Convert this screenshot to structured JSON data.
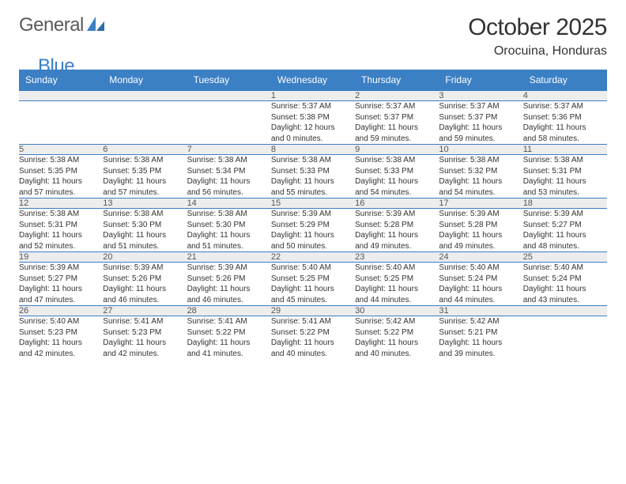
{
  "logo": {
    "general": "General",
    "blue": "Blue"
  },
  "header": {
    "title": "October 2025",
    "location": "Orocuina, Honduras"
  },
  "dayNames": [
    "Sunday",
    "Monday",
    "Tuesday",
    "Wednesday",
    "Thursday",
    "Friday",
    "Saturday"
  ],
  "colors": {
    "headerBg": "#3b7fc4",
    "dayRowBg": "#ededed",
    "text": "#333333"
  },
  "weeks": [
    [
      null,
      null,
      null,
      {
        "n": "1",
        "sr": "Sunrise: 5:37 AM",
        "ss": "Sunset: 5:38 PM",
        "d1": "Daylight: 12 hours",
        "d2": "and 0 minutes."
      },
      {
        "n": "2",
        "sr": "Sunrise: 5:37 AM",
        "ss": "Sunset: 5:37 PM",
        "d1": "Daylight: 11 hours",
        "d2": "and 59 minutes."
      },
      {
        "n": "3",
        "sr": "Sunrise: 5:37 AM",
        "ss": "Sunset: 5:37 PM",
        "d1": "Daylight: 11 hours",
        "d2": "and 59 minutes."
      },
      {
        "n": "4",
        "sr": "Sunrise: 5:37 AM",
        "ss": "Sunset: 5:36 PM",
        "d1": "Daylight: 11 hours",
        "d2": "and 58 minutes."
      }
    ],
    [
      {
        "n": "5",
        "sr": "Sunrise: 5:38 AM",
        "ss": "Sunset: 5:35 PM",
        "d1": "Daylight: 11 hours",
        "d2": "and 57 minutes."
      },
      {
        "n": "6",
        "sr": "Sunrise: 5:38 AM",
        "ss": "Sunset: 5:35 PM",
        "d1": "Daylight: 11 hours",
        "d2": "and 57 minutes."
      },
      {
        "n": "7",
        "sr": "Sunrise: 5:38 AM",
        "ss": "Sunset: 5:34 PM",
        "d1": "Daylight: 11 hours",
        "d2": "and 56 minutes."
      },
      {
        "n": "8",
        "sr": "Sunrise: 5:38 AM",
        "ss": "Sunset: 5:33 PM",
        "d1": "Daylight: 11 hours",
        "d2": "and 55 minutes."
      },
      {
        "n": "9",
        "sr": "Sunrise: 5:38 AM",
        "ss": "Sunset: 5:33 PM",
        "d1": "Daylight: 11 hours",
        "d2": "and 54 minutes."
      },
      {
        "n": "10",
        "sr": "Sunrise: 5:38 AM",
        "ss": "Sunset: 5:32 PM",
        "d1": "Daylight: 11 hours",
        "d2": "and 54 minutes."
      },
      {
        "n": "11",
        "sr": "Sunrise: 5:38 AM",
        "ss": "Sunset: 5:31 PM",
        "d1": "Daylight: 11 hours",
        "d2": "and 53 minutes."
      }
    ],
    [
      {
        "n": "12",
        "sr": "Sunrise: 5:38 AM",
        "ss": "Sunset: 5:31 PM",
        "d1": "Daylight: 11 hours",
        "d2": "and 52 minutes."
      },
      {
        "n": "13",
        "sr": "Sunrise: 5:38 AM",
        "ss": "Sunset: 5:30 PM",
        "d1": "Daylight: 11 hours",
        "d2": "and 51 minutes."
      },
      {
        "n": "14",
        "sr": "Sunrise: 5:38 AM",
        "ss": "Sunset: 5:30 PM",
        "d1": "Daylight: 11 hours",
        "d2": "and 51 minutes."
      },
      {
        "n": "15",
        "sr": "Sunrise: 5:39 AM",
        "ss": "Sunset: 5:29 PM",
        "d1": "Daylight: 11 hours",
        "d2": "and 50 minutes."
      },
      {
        "n": "16",
        "sr": "Sunrise: 5:39 AM",
        "ss": "Sunset: 5:28 PM",
        "d1": "Daylight: 11 hours",
        "d2": "and 49 minutes."
      },
      {
        "n": "17",
        "sr": "Sunrise: 5:39 AM",
        "ss": "Sunset: 5:28 PM",
        "d1": "Daylight: 11 hours",
        "d2": "and 49 minutes."
      },
      {
        "n": "18",
        "sr": "Sunrise: 5:39 AM",
        "ss": "Sunset: 5:27 PM",
        "d1": "Daylight: 11 hours",
        "d2": "and 48 minutes."
      }
    ],
    [
      {
        "n": "19",
        "sr": "Sunrise: 5:39 AM",
        "ss": "Sunset: 5:27 PM",
        "d1": "Daylight: 11 hours",
        "d2": "and 47 minutes."
      },
      {
        "n": "20",
        "sr": "Sunrise: 5:39 AM",
        "ss": "Sunset: 5:26 PM",
        "d1": "Daylight: 11 hours",
        "d2": "and 46 minutes."
      },
      {
        "n": "21",
        "sr": "Sunrise: 5:39 AM",
        "ss": "Sunset: 5:26 PM",
        "d1": "Daylight: 11 hours",
        "d2": "and 46 minutes."
      },
      {
        "n": "22",
        "sr": "Sunrise: 5:40 AM",
        "ss": "Sunset: 5:25 PM",
        "d1": "Daylight: 11 hours",
        "d2": "and 45 minutes."
      },
      {
        "n": "23",
        "sr": "Sunrise: 5:40 AM",
        "ss": "Sunset: 5:25 PM",
        "d1": "Daylight: 11 hours",
        "d2": "and 44 minutes."
      },
      {
        "n": "24",
        "sr": "Sunrise: 5:40 AM",
        "ss": "Sunset: 5:24 PM",
        "d1": "Daylight: 11 hours",
        "d2": "and 44 minutes."
      },
      {
        "n": "25",
        "sr": "Sunrise: 5:40 AM",
        "ss": "Sunset: 5:24 PM",
        "d1": "Daylight: 11 hours",
        "d2": "and 43 minutes."
      }
    ],
    [
      {
        "n": "26",
        "sr": "Sunrise: 5:40 AM",
        "ss": "Sunset: 5:23 PM",
        "d1": "Daylight: 11 hours",
        "d2": "and 42 minutes."
      },
      {
        "n": "27",
        "sr": "Sunrise: 5:41 AM",
        "ss": "Sunset: 5:23 PM",
        "d1": "Daylight: 11 hours",
        "d2": "and 42 minutes."
      },
      {
        "n": "28",
        "sr": "Sunrise: 5:41 AM",
        "ss": "Sunset: 5:22 PM",
        "d1": "Daylight: 11 hours",
        "d2": "and 41 minutes."
      },
      {
        "n": "29",
        "sr": "Sunrise: 5:41 AM",
        "ss": "Sunset: 5:22 PM",
        "d1": "Daylight: 11 hours",
        "d2": "and 40 minutes."
      },
      {
        "n": "30",
        "sr": "Sunrise: 5:42 AM",
        "ss": "Sunset: 5:22 PM",
        "d1": "Daylight: 11 hours",
        "d2": "and 40 minutes."
      },
      {
        "n": "31",
        "sr": "Sunrise: 5:42 AM",
        "ss": "Sunset: 5:21 PM",
        "d1": "Daylight: 11 hours",
        "d2": "and 39 minutes."
      },
      null
    ]
  ]
}
